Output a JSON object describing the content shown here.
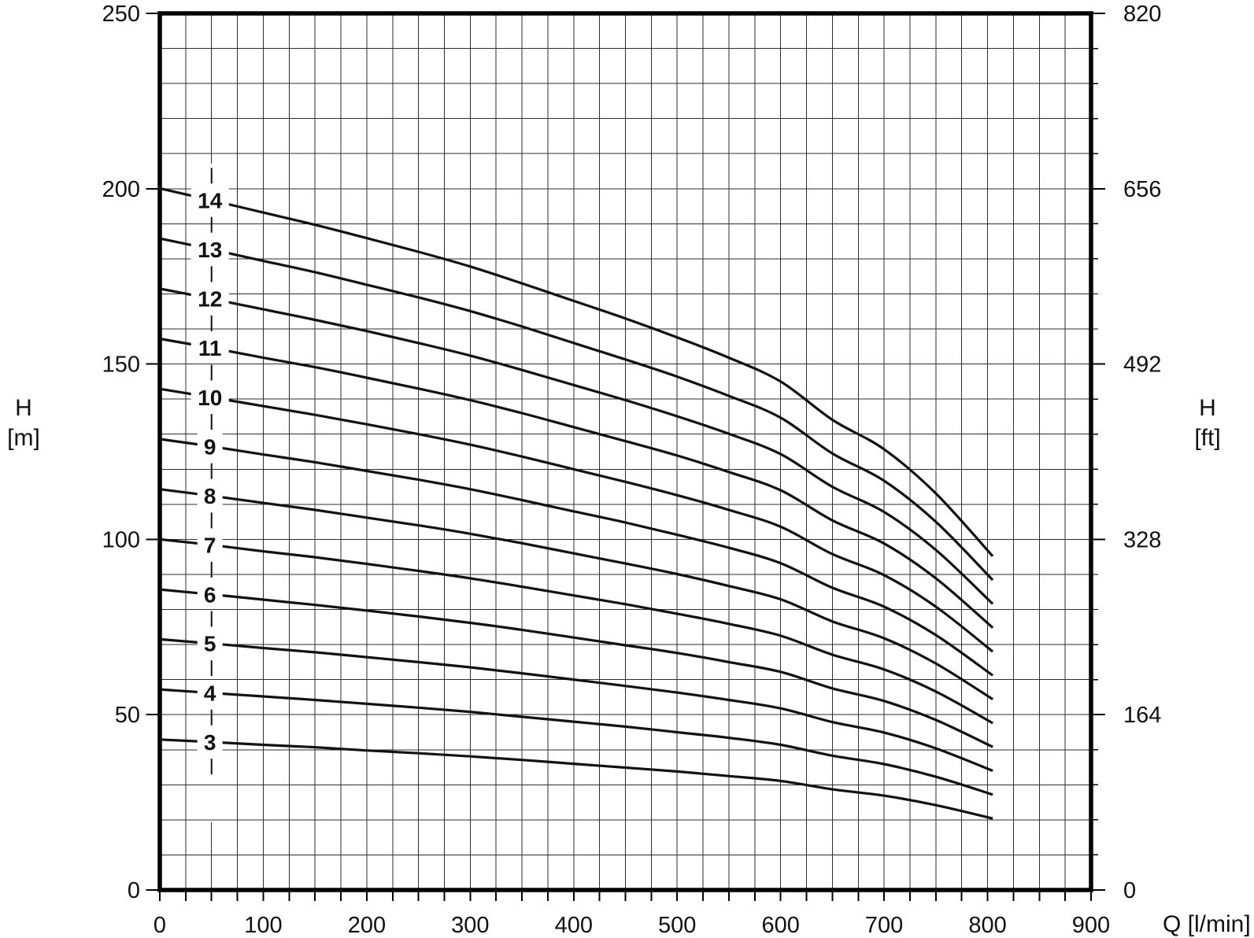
{
  "page": {
    "background": "#ffffff"
  },
  "chart_data": {
    "type": "line",
    "title": "",
    "description": "Pump performance curves: head H versus flow Q for 3 to 14 stages",
    "line_color": "#111111",
    "grid_color": "#2e2e2e",
    "x_axis": {
      "label": "Q [l/min]",
      "min": 0,
      "max": 900,
      "major_step": 100,
      "minor_step": 25,
      "tick_labels": [
        "0",
        "100",
        "200",
        "300",
        "400",
        "500",
        "600",
        "700",
        "800",
        "900"
      ]
    },
    "y_axis_left": {
      "label_line1": "H",
      "label_line2": "[m]",
      "min": 0,
      "max": 250,
      "major_step": 50,
      "minor_step": 10,
      "tick_labels": [
        "0",
        "50",
        "100",
        "150",
        "200",
        "250"
      ]
    },
    "y_axis_right": {
      "label_line1": "H",
      "label_line2": "[ft]",
      "tick_positions_m": [
        0,
        50,
        100,
        150,
        200,
        250
      ],
      "tick_labels": [
        "0",
        "164",
        "328",
        "492",
        "656",
        "820"
      ]
    },
    "min_flow_dashed_line_q": 50,
    "curve_label_q": 50,
    "q_values": [
      0,
      50,
      100,
      150,
      200,
      250,
      300,
      350,
      400,
      450,
      500,
      550,
      600,
      650,
      700,
      750,
      805
    ],
    "series": [
      {
        "label": "3",
        "stages": 3,
        "head_m": [
          42.9,
          42.2,
          41.4,
          40.7,
          39.8,
          39.0,
          38.1,
          37.1,
          36.0,
          34.9,
          33.8,
          32.5,
          31.1,
          28.7,
          26.9,
          24.2,
          20.4
        ]
      },
      {
        "label": "4",
        "stages": 4,
        "head_m": [
          57.2,
          56.2,
          55.2,
          54.2,
          53.1,
          52.0,
          50.8,
          49.4,
          48.0,
          46.6,
          45.0,
          43.4,
          41.4,
          38.3,
          35.9,
          32.3,
          27.2
        ]
      },
      {
        "label": "5",
        "stages": 5,
        "head_m": [
          71.5,
          70.3,
          69.0,
          67.8,
          66.4,
          65.0,
          63.5,
          61.8,
          60.0,
          58.2,
          56.3,
          54.2,
          51.8,
          47.9,
          44.9,
          40.4,
          34.0
        ]
      },
      {
        "label": "6",
        "stages": 6,
        "head_m": [
          85.7,
          84.3,
          82.8,
          81.3,
          79.7,
          78.0,
          76.2,
          74.2,
          72.0,
          69.8,
          67.6,
          65.0,
          62.2,
          57.5,
          53.9,
          48.5,
          40.8
        ]
      },
      {
        "label": "7",
        "stages": 7,
        "head_m": [
          100.0,
          98.4,
          96.6,
          94.9,
          93.0,
          91.0,
          88.9,
          86.5,
          84.0,
          81.5,
          78.8,
          75.9,
          72.5,
          67.1,
          62.9,
          56.6,
          47.6
        ]
      },
      {
        "label": "8",
        "stages": 8,
        "head_m": [
          114.3,
          112.4,
          110.4,
          108.4,
          106.2,
          104.0,
          101.6,
          98.9,
          96.0,
          93.1,
          90.1,
          86.7,
          82.9,
          76.6,
          71.8,
          64.6,
          54.4
        ]
      },
      {
        "label": "9",
        "stages": 9,
        "head_m": [
          128.6,
          126.5,
          124.2,
          122.0,
          119.5,
          117.0,
          114.3,
          111.2,
          108.0,
          104.8,
          101.3,
          97.6,
          93.2,
          86.2,
          80.8,
          72.7,
          61.2
        ]
      },
      {
        "label": "10",
        "stages": 10,
        "head_m": [
          142.9,
          140.5,
          138.0,
          135.5,
          132.8,
          130.0,
          127.0,
          123.6,
          120.0,
          116.4,
          112.6,
          108.4,
          103.6,
          95.8,
          89.8,
          80.8,
          68.0
        ]
      },
      {
        "label": "11",
        "stages": 11,
        "head_m": [
          157.2,
          154.6,
          151.8,
          149.1,
          146.1,
          143.0,
          139.7,
          136.0,
          132.0,
          128.0,
          123.9,
          119.2,
          114.0,
          105.4,
          98.8,
          88.9,
          74.8
        ]
      },
      {
        "label": "12",
        "stages": 12,
        "head_m": [
          171.5,
          168.6,
          165.6,
          162.6,
          159.4,
          156.0,
          152.4,
          148.3,
          144.0,
          139.7,
          135.1,
          130.1,
          124.3,
          115.0,
          107.8,
          97.0,
          81.6
        ]
      },
      {
        "label": "13",
        "stages": 13,
        "head_m": [
          185.8,
          182.7,
          179.4,
          176.2,
          172.6,
          169.0,
          165.1,
          160.7,
          156.0,
          151.3,
          146.4,
          140.9,
          134.7,
          124.5,
          116.7,
          105.0,
          88.4
        ]
      },
      {
        "label": "14",
        "stages": 14,
        "head_m": [
          200.1,
          196.7,
          193.2,
          189.7,
          185.9,
          182.0,
          177.8,
          173.0,
          168.0,
          163.0,
          157.6,
          151.8,
          145.0,
          134.1,
          125.7,
          113.1,
          95.2
        ]
      }
    ]
  }
}
